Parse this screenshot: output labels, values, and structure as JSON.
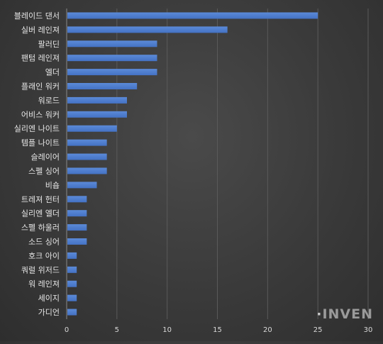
{
  "chart_data": {
    "type": "bar",
    "orientation": "horizontal",
    "categories": [
      "블레이드 댄서",
      "실버 레인져",
      "팔러딘",
      "팬텀 레인져",
      "엘더",
      "플래인 워커",
      "워로드",
      "어비스 워커",
      "실리엔 나이트",
      "템플 나이트",
      "슬레이어",
      "스펠 싱어",
      "비숍",
      "트레져 헌터",
      "실리엔 엘더",
      "스펠 하울러",
      "소드 싱어",
      "호크 아이",
      "쿼럴 위저드",
      "워 레인져",
      "세이지",
      "가디언"
    ],
    "values": [
      25,
      16,
      9,
      9,
      9,
      7,
      6,
      6,
      5,
      4,
      4,
      4,
      3,
      2,
      2,
      2,
      2,
      1,
      1,
      1,
      1,
      1
    ],
    "xlim": [
      0,
      30
    ],
    "xticks": [
      0,
      5,
      10,
      15,
      20,
      25,
      30
    ],
    "grid": "vertical",
    "bar_color": "#4472c4"
  },
  "watermark": {
    "text": "INVEN"
  }
}
